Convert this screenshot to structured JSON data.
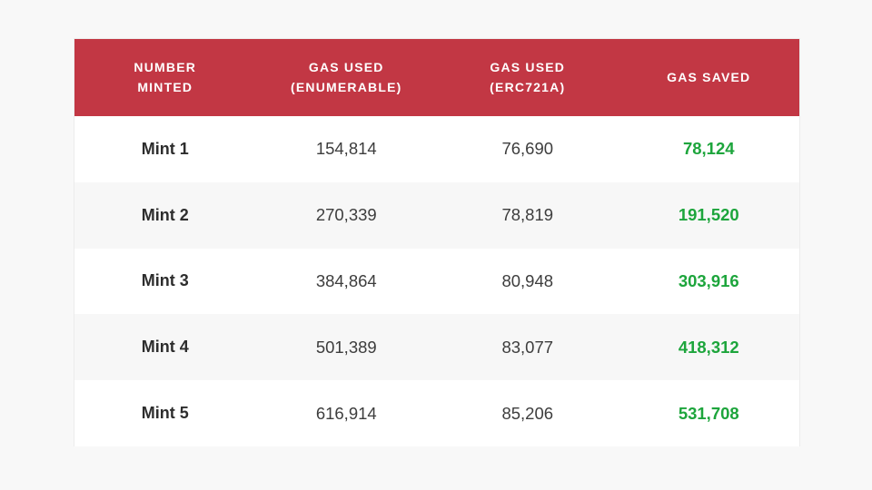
{
  "page": {
    "background_color": "#f8f8f8"
  },
  "table": {
    "header": {
      "background_color": "#c23744",
      "text_color": "#ffffff",
      "columns": [
        {
          "label": "NUMBER MINTED",
          "line1": "NUMBER",
          "line2": "MINTED"
        },
        {
          "label": "GAS USED (ENUMERABLE)",
          "line1": "GAS USED",
          "line2": "(ENUMERABLE)"
        },
        {
          "label": "GAS USED (ERC721A)",
          "line1": "GAS USED",
          "line2": "(ERC721A)"
        },
        {
          "label": "GAS SAVED",
          "line1": "GAS SAVED",
          "line2": ""
        }
      ]
    },
    "rows": [
      {
        "label": "Mint 1",
        "gas_enumerable": "154,814",
        "gas_erc721a": "76,690",
        "gas_saved": "78,124"
      },
      {
        "label": "Mint 2",
        "gas_enumerable": "270,339",
        "gas_erc721a": "78,819",
        "gas_saved": "191,520"
      },
      {
        "label": "Mint 3",
        "gas_enumerable": "384,864",
        "gas_erc721a": "80,948",
        "gas_saved": "303,916"
      },
      {
        "label": "Mint 4",
        "gas_enumerable": "501,389",
        "gas_erc721a": "83,077",
        "gas_saved": "418,312"
      },
      {
        "label": "Mint 5",
        "gas_enumerable": "616,914",
        "gas_erc721a": "85,206",
        "gas_saved": "531,708"
      }
    ],
    "colors": {
      "saved_value_green": "#1da53c",
      "data_text": "#3d3d3d",
      "row_stripe": "#f7f7f7",
      "card_background": "#ffffff",
      "card_border": "#ececec"
    }
  },
  "chart_data": {
    "type": "table",
    "title": "",
    "columns": [
      "Number Minted",
      "Gas Used (Enumerable)",
      "Gas Used (ERC721A)",
      "Gas Saved"
    ],
    "rows": [
      [
        "Mint 1",
        154814,
        76690,
        78124
      ],
      [
        "Mint 2",
        270339,
        78819,
        191520
      ],
      [
        "Mint 3",
        384864,
        80948,
        303916
      ],
      [
        "Mint 4",
        501389,
        83077,
        418312
      ],
      [
        "Mint 5",
        616914,
        85206,
        531708
      ]
    ]
  }
}
